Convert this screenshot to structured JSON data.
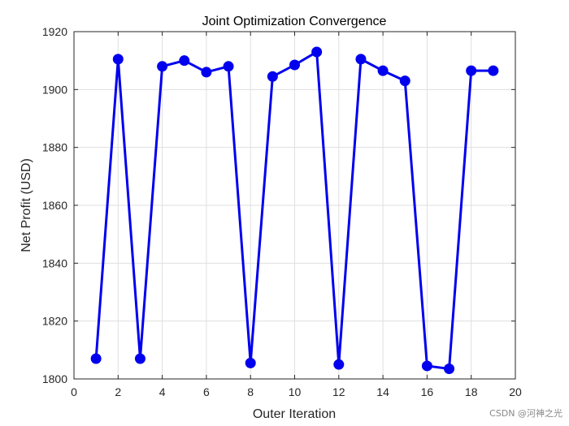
{
  "chart_data": {
    "type": "line",
    "title": "Joint Optimization Convergence",
    "xlabel": "Outer Iteration",
    "ylabel": "Net Profit (USD)",
    "xlim": [
      0,
      20
    ],
    "ylim": [
      1800,
      1920
    ],
    "xticks": [
      0,
      2,
      4,
      6,
      8,
      10,
      12,
      14,
      16,
      18,
      20
    ],
    "yticks": [
      1800,
      1820,
      1840,
      1860,
      1880,
      1900,
      1920
    ],
    "grid": true,
    "legend": "none",
    "series": [
      {
        "color": "#0000ee",
        "marker": "circle",
        "x": [
          1,
          2,
          3,
          4,
          5,
          6,
          7,
          8,
          9,
          10,
          11,
          12,
          13,
          14,
          15,
          16,
          17,
          18,
          19
        ],
        "y": [
          1807,
          1910.5,
          1807,
          1908,
          1910,
          1906,
          1908,
          1805.5,
          1904.5,
          1908.5,
          1913,
          1805,
          1910.5,
          1906.5,
          1903,
          1804.5,
          1803.5,
          1906.5,
          1906.5
        ]
      }
    ]
  },
  "watermark": "CSDN @河神之光"
}
